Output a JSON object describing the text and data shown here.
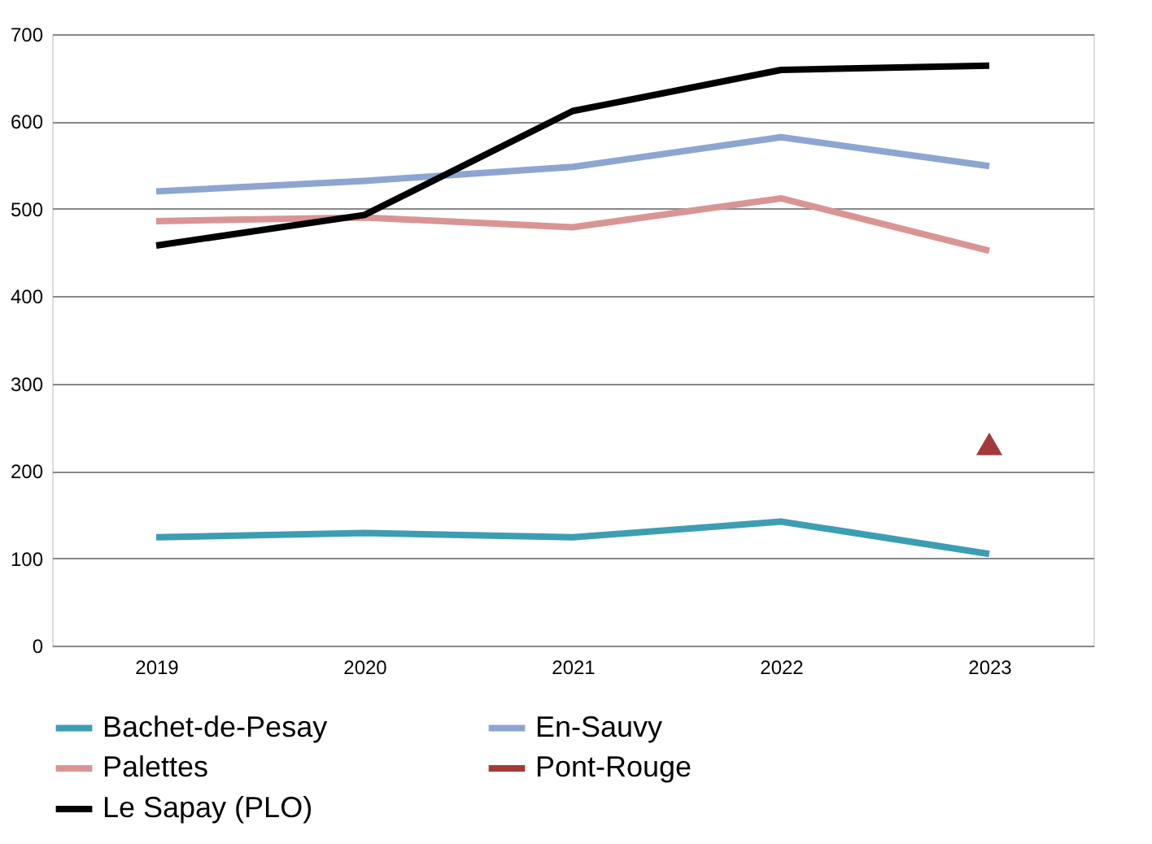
{
  "chart_data": {
    "type": "line",
    "categories": [
      "2019",
      "2020",
      "2021",
      "2022",
      "2023"
    ],
    "ylim": [
      0,
      700
    ],
    "yticks": [
      0,
      100,
      200,
      300,
      400,
      500,
      600,
      700
    ],
    "grid": "y",
    "legend": "bottom",
    "line_style": "solid",
    "marker": "none",
    "series": [
      {
        "name": "Bachet-de-Pesay",
        "color": "#3d9db3",
        "values": [
          124,
          129,
          124,
          142,
          105
        ]
      },
      {
        "name": "En-Sauvy",
        "color": "#8ea5d1",
        "values": [
          520,
          532,
          548,
          582,
          549
        ]
      },
      {
        "name": "Palettes",
        "color": "#d99594",
        "values": [
          486,
          490,
          479,
          512,
          452
        ]
      },
      {
        "name": "Pont-Rouge",
        "color": "#a33a3a",
        "type": "scatter",
        "marker": "triangle",
        "values": [
          null,
          null,
          null,
          null,
          231
        ]
      },
      {
        "name": "Le Sapay (PLO)",
        "color": "#000000",
        "values": [
          458,
          493,
          612,
          659,
          664
        ]
      }
    ]
  }
}
